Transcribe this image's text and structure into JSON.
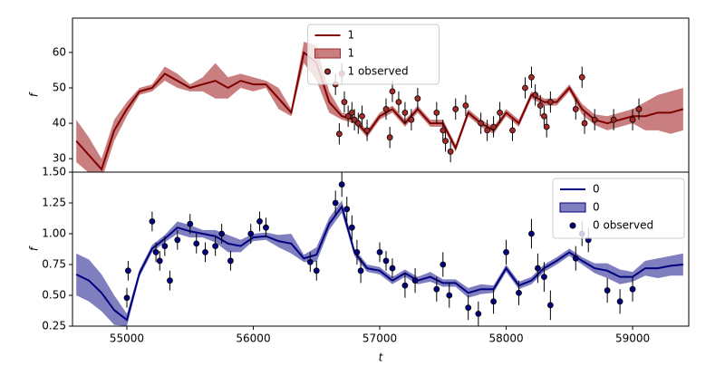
{
  "chart_data": [
    {
      "type": "line",
      "ylabel": "f",
      "xlim": [
        54570,
        59444
      ],
      "ylim": [
        26.2,
        69.7
      ],
      "yticks": [
        30,
        40,
        50,
        60
      ],
      "legend": "upper center",
      "series": [
        {
          "name": "1",
          "kind": "line",
          "color": "#800000",
          "x": [
            54600,
            54700,
            54800,
            54900,
            55000,
            55100,
            55200,
            55300,
            55400,
            55500,
            55600,
            55700,
            55800,
            55900,
            56000,
            56100,
            56200,
            56300,
            56400,
            56500,
            56600,
            56700,
            56800,
            56900,
            57000,
            57100,
            57200,
            57300,
            57400,
            57500,
            57600,
            57700,
            57800,
            57900,
            58000,
            58100,
            58200,
            58300,
            58400,
            58500,
            58600,
            58700,
            58800,
            58900,
            59000,
            59100,
            59200,
            59300,
            59400
          ],
          "values": [
            35,
            31,
            27,
            38,
            44,
            49,
            50,
            54,
            52,
            50,
            51,
            52,
            50,
            52,
            51,
            51,
            47,
            43,
            60,
            57,
            46,
            42,
            41,
            37,
            42,
            44,
            40,
            44,
            40,
            40,
            33,
            43,
            40,
            38,
            43,
            40,
            48,
            46,
            46,
            50,
            44,
            41,
            40,
            41,
            42,
            42,
            43,
            43,
            44
          ]
        },
        {
          "name": "1",
          "kind": "band",
          "color": "#a52a2a",
          "x": [
            54600,
            54700,
            54800,
            54900,
            55000,
            55100,
            55200,
            55300,
            55400,
            55500,
            55600,
            55700,
            55800,
            55900,
            56000,
            56100,
            56200,
            56300,
            56400,
            56500,
            56600,
            56700,
            56800,
            56900,
            57000,
            57100,
            57200,
            57300,
            57400,
            57500,
            57600,
            57700,
            57800,
            57900,
            58000,
            58100,
            58200,
            58300,
            58400,
            58500,
            58600,
            58700,
            58800,
            58900,
            59000,
            59100,
            59200,
            59300,
            59400
          ],
          "lower": [
            29,
            26,
            24,
            35,
            42,
            48,
            49,
            52,
            50,
            49,
            49,
            47,
            47,
            50,
            49,
            50,
            44,
            42,
            57,
            52,
            43,
            41,
            40,
            36,
            41,
            43,
            39,
            43,
            39,
            39,
            32,
            42,
            39,
            37,
            42,
            39,
            47,
            45,
            45,
            49,
            42.5,
            39.5,
            38,
            39,
            40,
            38,
            38,
            37,
            38
          ],
          "upper": [
            41,
            36,
            30,
            41,
            46,
            50,
            51,
            56,
            54,
            51,
            53,
            57,
            53,
            54,
            53,
            52,
            50,
            44,
            63,
            62,
            49,
            43,
            42,
            38,
            43,
            45,
            41,
            45,
            41,
            41,
            34,
            44,
            41,
            39,
            44,
            41,
            49,
            47,
            47,
            51,
            45.5,
            42.5,
            42,
            43,
            44,
            46,
            48,
            49,
            50
          ]
        },
        {
          "name": "1 observed",
          "kind": "points",
          "color": "#a52a2a",
          "x": [
            56650,
            56680,
            56700,
            56720,
            56750,
            56780,
            56800,
            56830,
            56860,
            56900,
            57050,
            57080,
            57100,
            57150,
            57200,
            57250,
            57300,
            57450,
            57500,
            57520,
            57560,
            57600,
            57680,
            57800,
            57850,
            57900,
            57950,
            58050,
            58150,
            58200,
            58230,
            58270,
            58300,
            58320,
            58350,
            58550,
            58600,
            58620,
            58700,
            58850,
            59000,
            59050
          ],
          "values": [
            51,
            37,
            54,
            46,
            42,
            43,
            41,
            40,
            42,
            38,
            44,
            36,
            49,
            46,
            43,
            41,
            47,
            43,
            38,
            35,
            32,
            44,
            45,
            40,
            38,
            39,
            43,
            38,
            50,
            53,
            48,
            45,
            42,
            39,
            46,
            44,
            53,
            40,
            41,
            41,
            41,
            44
          ],
          "errors": [
            3,
            3,
            3,
            3,
            3,
            3,
            3,
            3,
            3,
            3,
            3,
            3,
            3,
            3,
            3,
            3,
            3,
            3,
            3,
            3,
            3,
            3,
            3,
            3,
            3,
            3,
            3,
            3,
            3,
            3,
            3,
            3,
            3,
            3,
            3,
            3,
            3,
            3,
            3,
            3,
            3,
            3
          ]
        }
      ]
    },
    {
      "type": "line",
      "ylabel": "f",
      "xlabel": "t",
      "xlim": [
        54570,
        59444
      ],
      "ylim": [
        0.25,
        1.5
      ],
      "yticks": [
        0.25,
        {
          "value": 0.5,
          "label": "0.50"
        },
        0.75,
        {
          "value": 1,
          "label": "1.00"
        },
        1.25,
        {
          "value": 1.5,
          "label": "1.50"
        }
      ],
      "xticks": [
        55000,
        56000,
        57000,
        58000,
        59000
      ],
      "legend": "upper right",
      "series": [
        {
          "name": "0",
          "kind": "line",
          "color": "#000080",
          "x": [
            54600,
            54700,
            54800,
            54900,
            55000,
            55100,
            55200,
            55300,
            55400,
            55500,
            55600,
            55700,
            55800,
            55900,
            56000,
            56100,
            56200,
            56300,
            56400,
            56500,
            56600,
            56700,
            56800,
            56900,
            57000,
            57100,
            57200,
            57300,
            57400,
            57500,
            57600,
            57700,
            57800,
            57900,
            58000,
            58100,
            58200,
            58300,
            58400,
            58500,
            58600,
            58700,
            58800,
            58900,
            59000,
            59100,
            59200,
            59300,
            59400
          ],
          "values": [
            0.67,
            0.62,
            0.52,
            0.38,
            0.3,
            0.68,
            0.88,
            0.96,
            1.05,
            1.02,
            1.0,
            0.98,
            0.92,
            0.9,
            0.97,
            0.98,
            0.94,
            0.92,
            0.8,
            0.83,
            1.08,
            1.22,
            0.85,
            0.72,
            0.7,
            0.62,
            0.68,
            0.62,
            0.65,
            0.6,
            0.6,
            0.52,
            0.55,
            0.55,
            0.72,
            0.58,
            0.62,
            0.72,
            0.78,
            0.85,
            0.78,
            0.72,
            0.7,
            0.65,
            0.65,
            0.72,
            0.72,
            0.74,
            0.75
          ]
        },
        {
          "name": "0",
          "kind": "band",
          "color": "#000080",
          "x": [
            54600,
            54700,
            54800,
            54900,
            55000,
            55100,
            55200,
            55300,
            55400,
            55500,
            55600,
            55700,
            55800,
            55900,
            56000,
            56100,
            56200,
            56300,
            56400,
            56500,
            56600,
            56700,
            56800,
            56900,
            57000,
            57100,
            57200,
            57300,
            57400,
            57500,
            57600,
            57700,
            57800,
            57900,
            58000,
            58100,
            58200,
            58300,
            58400,
            58500,
            58600,
            58700,
            58800,
            58900,
            59000,
            59100,
            59200,
            59300,
            59400
          ],
          "lower": [
            0.5,
            0.45,
            0.37,
            0.26,
            0.25,
            0.65,
            0.85,
            0.93,
            1.0,
            0.97,
            0.97,
            0.93,
            0.85,
            0.85,
            0.94,
            0.95,
            0.89,
            0.84,
            0.77,
            0.77,
            1.03,
            1.17,
            0.82,
            0.69,
            0.67,
            0.59,
            0.65,
            0.59,
            0.61,
            0.57,
            0.57,
            0.48,
            0.51,
            0.52,
            0.69,
            0.55,
            0.59,
            0.69,
            0.75,
            0.82,
            0.75,
            0.68,
            0.64,
            0.59,
            0.61,
            0.66,
            0.64,
            0.66,
            0.66
          ],
          "upper": [
            0.84,
            0.79,
            0.67,
            0.5,
            0.35,
            0.71,
            0.91,
            0.99,
            1.1,
            1.07,
            1.03,
            1.03,
            0.99,
            0.95,
            1.0,
            1.01,
            0.99,
            1.0,
            0.83,
            0.89,
            1.13,
            1.27,
            0.88,
            0.75,
            0.73,
            0.65,
            0.71,
            0.65,
            0.69,
            0.63,
            0.63,
            0.56,
            0.59,
            0.58,
            0.75,
            0.61,
            0.65,
            0.75,
            0.81,
            0.88,
            0.81,
            0.76,
            0.76,
            0.71,
            0.69,
            0.78,
            0.8,
            0.82,
            0.84
          ]
        },
        {
          "name": "0 observed",
          "kind": "points",
          "color": "#000080",
          "x": [
            55000,
            55010,
            55200,
            55230,
            55260,
            55300,
            55340,
            55400,
            55500,
            55550,
            55620,
            55700,
            55750,
            55820,
            55980,
            56050,
            56100,
            56450,
            56500,
            56650,
            56700,
            56740,
            56780,
            56820,
            56850,
            57000,
            57050,
            57100,
            57200,
            57280,
            57450,
            57500,
            57550,
            57700,
            57780,
            57900,
            58000,
            58100,
            58200,
            58250,
            58300,
            58350,
            58550,
            58600,
            58650,
            58800,
            58900,
            59000
          ],
          "values": [
            0.48,
            0.7,
            1.1,
            0.85,
            0.78,
            0.9,
            0.62,
            0.95,
            1.08,
            0.92,
            0.85,
            0.9,
            1.0,
            0.78,
            1.0,
            1.1,
            1.05,
            0.77,
            0.7,
            1.25,
            1.4,
            1.2,
            1.05,
            0.85,
            0.7,
            0.85,
            0.78,
            0.72,
            0.58,
            0.62,
            0.55,
            0.75,
            0.5,
            0.4,
            0.35,
            0.45,
            0.85,
            0.52,
            1.0,
            0.72,
            0.65,
            0.42,
            0.8,
            1.0,
            0.95,
            0.54,
            0.45,
            0.55
          ],
          "errors": [
            0.08,
            0.08,
            0.08,
            0.08,
            0.08,
            0.08,
            0.08,
            0.08,
            0.08,
            0.08,
            0.08,
            0.08,
            0.08,
            0.08,
            0.08,
            0.08,
            0.08,
            0.08,
            0.08,
            0.1,
            0.1,
            0.1,
            0.1,
            0.1,
            0.1,
            0.08,
            0.08,
            0.08,
            0.1,
            0.1,
            0.1,
            0.1,
            0.1,
            0.1,
            0.1,
            0.1,
            0.1,
            0.1,
            0.12,
            0.12,
            0.12,
            0.12,
            0.1,
            0.1,
            0.1,
            0.1,
            0.1,
            0.1
          ]
        }
      ]
    }
  ]
}
